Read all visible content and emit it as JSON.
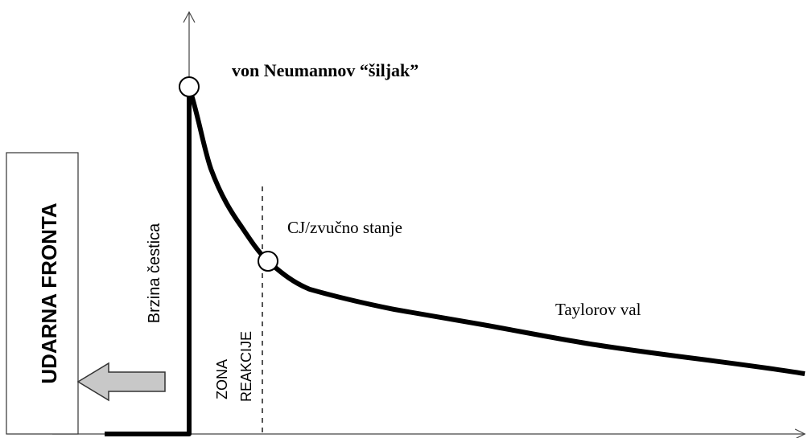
{
  "labels": {
    "spike": "von Neumannov “šiljak”",
    "cj_state": "CJ/zvučno stanje",
    "taylor_wave": "Taylorov val",
    "y_axis": "Brzina čestica",
    "shock_front": "UDARNA FRONTA",
    "reaction_zone": [
      "ZONA",
      "REAKCIJE"
    ]
  }
}
